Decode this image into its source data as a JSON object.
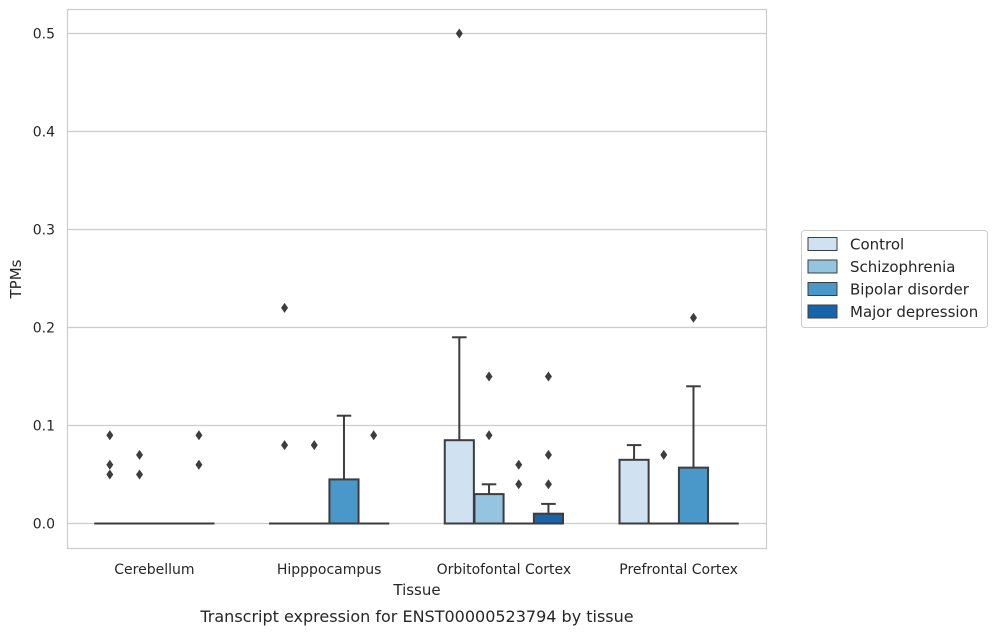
{
  "chart_data": {
    "type": "box",
    "title": "",
    "caption": "Transcript expression for ENST00000523794 by tissue",
    "xlabel": "Tissue",
    "ylabel": "TPMs",
    "ylim": [
      -0.025,
      0.525
    ],
    "yticks": [
      "0.0",
      "0.1",
      "0.2",
      "0.3",
      "0.4",
      "0.5"
    ],
    "grid": "horizontal",
    "legend_position": "right",
    "categories": [
      "Cerebellum",
      "Hipppocampus",
      "Orbitofontal Cortex",
      "Prefrontal Cortex"
    ],
    "series": [
      {
        "name": "Control",
        "color": "#d0e1f2",
        "boxes": [
          {
            "q1": 0,
            "median": 0,
            "q3": 0,
            "whisker_low": 0,
            "whisker_high": 0,
            "outliers": [
              0.09,
              0.06,
              0.05
            ]
          },
          {
            "q1": 0,
            "median": 0,
            "q3": 0,
            "whisker_low": 0,
            "whisker_high": 0,
            "outliers": [
              0.22,
              0.08
            ]
          },
          {
            "q1": 0,
            "median": 0,
            "q3": 0.085,
            "whisker_low": 0,
            "whisker_high": 0.19,
            "outliers": [
              0.5
            ]
          },
          {
            "q1": 0,
            "median": 0,
            "q3": 0.065,
            "whisker_low": 0,
            "whisker_high": 0.08,
            "outliers": []
          }
        ]
      },
      {
        "name": "Schizophrenia",
        "color": "#94c4df",
        "boxes": [
          {
            "q1": 0,
            "median": 0,
            "q3": 0,
            "whisker_low": 0,
            "whisker_high": 0,
            "outliers": [
              0.07,
              0.05
            ]
          },
          {
            "q1": 0,
            "median": 0,
            "q3": 0,
            "whisker_low": 0,
            "whisker_high": 0,
            "outliers": [
              0.08
            ]
          },
          {
            "q1": 0,
            "median": 0,
            "q3": 0.03,
            "whisker_low": 0,
            "whisker_high": 0.04,
            "outliers": [
              0.15,
              0.09
            ]
          },
          {
            "q1": 0,
            "median": 0,
            "q3": 0,
            "whisker_low": 0,
            "whisker_high": 0,
            "outliers": [
              0.07
            ]
          }
        ]
      },
      {
        "name": "Bipolar disorder",
        "color": "#4a98c9",
        "boxes": [
          {
            "q1": 0,
            "median": 0,
            "q3": 0,
            "whisker_low": 0,
            "whisker_high": 0,
            "outliers": []
          },
          {
            "q1": 0,
            "median": 0,
            "q3": 0.045,
            "whisker_low": 0,
            "whisker_high": 0.11,
            "outliers": []
          },
          {
            "q1": 0,
            "median": 0,
            "q3": 0,
            "whisker_low": 0,
            "whisker_high": 0,
            "outliers": [
              0.06,
              0.04
            ]
          },
          {
            "q1": 0,
            "median": 0,
            "q3": 0.057,
            "whisker_low": 0,
            "whisker_high": 0.14,
            "outliers": [
              0.21
            ]
          }
        ]
      },
      {
        "name": "Major depression",
        "color": "#1764ab",
        "boxes": [
          {
            "q1": 0,
            "median": 0,
            "q3": 0,
            "whisker_low": 0,
            "whisker_high": 0,
            "outliers": [
              0.09,
              0.06
            ]
          },
          {
            "q1": 0,
            "median": 0,
            "q3": 0,
            "whisker_low": 0,
            "whisker_high": 0,
            "outliers": [
              0.09
            ]
          },
          {
            "q1": 0,
            "median": 0,
            "q3": 0.01,
            "whisker_low": 0,
            "whisker_high": 0.02,
            "outliers": [
              0.15,
              0.07,
              0.04
            ]
          },
          {
            "q1": 0,
            "median": 0,
            "q3": 0,
            "whisker_low": 0,
            "whisker_high": 0,
            "outliers": []
          }
        ]
      }
    ],
    "colors": {
      "grid": "#cccccc",
      "frame": "#cccccc",
      "stroke": "#3d3d3d",
      "text": "#262626"
    }
  }
}
